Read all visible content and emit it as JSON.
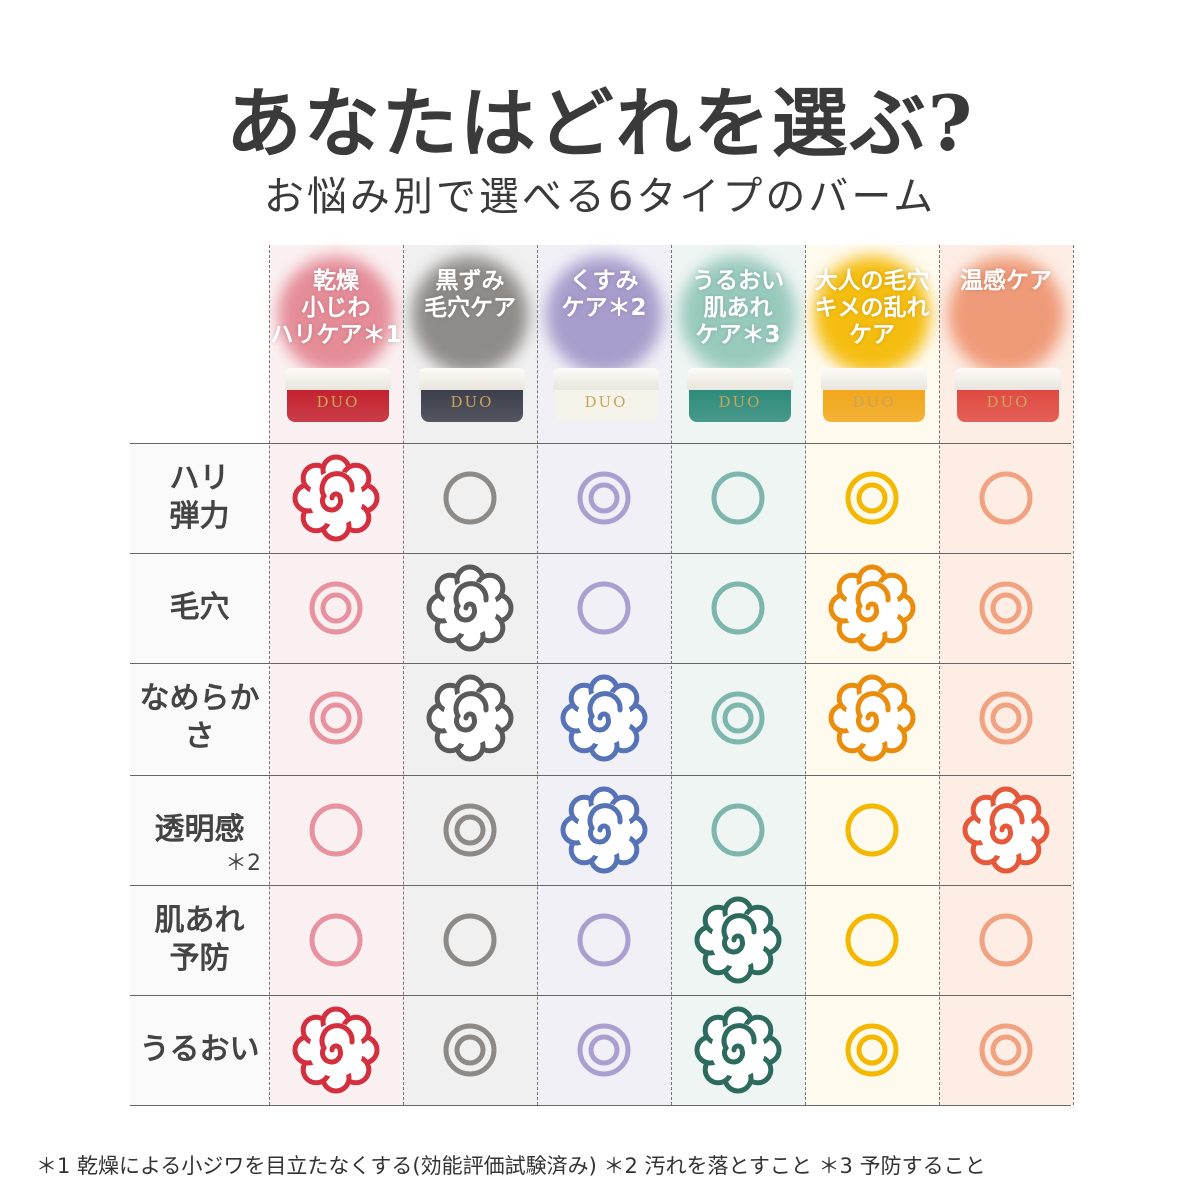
{
  "title": "あなたはどれを選ぶ?",
  "subtitle": "お悩み別で選べる6タイプのバーム",
  "rating_legend": {
    "flower": "best",
    "double_circle": "good",
    "circle": "fair"
  },
  "products": [
    {
      "label": "乾燥\n小じわ\nハリケア＊1",
      "brand": "DUO",
      "jar_color": "#c2222e",
      "bg": "#fbf0f1",
      "blob": "#e48c98",
      "circle": "#e8929f",
      "flower": "#d32f3e"
    },
    {
      "label": "黒ずみ\n毛穴ケア",
      "brand": "DUO",
      "jar_color": "#3c3f4b",
      "bg": "#f0f0f0",
      "blob": "#8f8b89",
      "circle": "#8d8987",
      "flower": "#5a5a5a"
    },
    {
      "label": "くすみ\nケア＊2",
      "brand": "DUO",
      "jar_color": "#f6f3ea",
      "bg": "#f1f0f7",
      "blob": "#a79ccb",
      "circle": "#ab9fcf",
      "flower": "#5573b6"
    },
    {
      "label": "うるおい\n肌あれ\nケア＊3",
      "brand": "DUO",
      "jar_color": "#2e8b7a",
      "bg": "#eff5f3",
      "blob": "#98c9bd",
      "circle": "#7cb6ad",
      "flower": "#2d6b5e"
    },
    {
      "label": "大人の毛穴\nキメの乱れ\nケア",
      "brand": "DUO",
      "jar_color": "#f2a71b",
      "bg": "#fefaee",
      "blob": "#f5bd10",
      "circle": "#f4b800",
      "flower": "#ea8d0c"
    },
    {
      "label": "温感ケア",
      "brand": "DUO",
      "jar_color": "#e04a42",
      "bg": "#fdede4",
      "blob": "#ef9a78",
      "circle": "#f1a280",
      "flower": "#e6583a"
    }
  ],
  "rows": [
    {
      "label": "ハリ\n弾力",
      "note": "",
      "ratings": [
        "flower",
        "circle",
        "double_circle",
        "circle",
        "double_circle",
        "circle"
      ]
    },
    {
      "label": "毛穴",
      "note": "",
      "ratings": [
        "double_circle",
        "flower",
        "circle",
        "circle",
        "flower",
        "double_circle"
      ]
    },
    {
      "label": "なめらか\nさ",
      "note": "",
      "ratings": [
        "double_circle",
        "flower",
        "flower",
        "double_circle",
        "flower",
        "double_circle"
      ]
    },
    {
      "label": "透明感",
      "note": "＊2",
      "ratings": [
        "circle",
        "double_circle",
        "flower",
        "circle",
        "circle",
        "flower"
      ]
    },
    {
      "label": "肌あれ\n予防",
      "note": "",
      "ratings": [
        "circle",
        "circle",
        "circle",
        "flower",
        "circle",
        "circle"
      ]
    },
    {
      "label": "うるおい",
      "note": "",
      "ratings": [
        "flower",
        "double_circle",
        "double_circle",
        "flower",
        "double_circle",
        "double_circle"
      ]
    }
  ],
  "footnote": "＊1 乾燥による小ジワを目立たなくする(効能評価試験済み) ＊2 汚れを落とすこと ＊3 予防すること"
}
